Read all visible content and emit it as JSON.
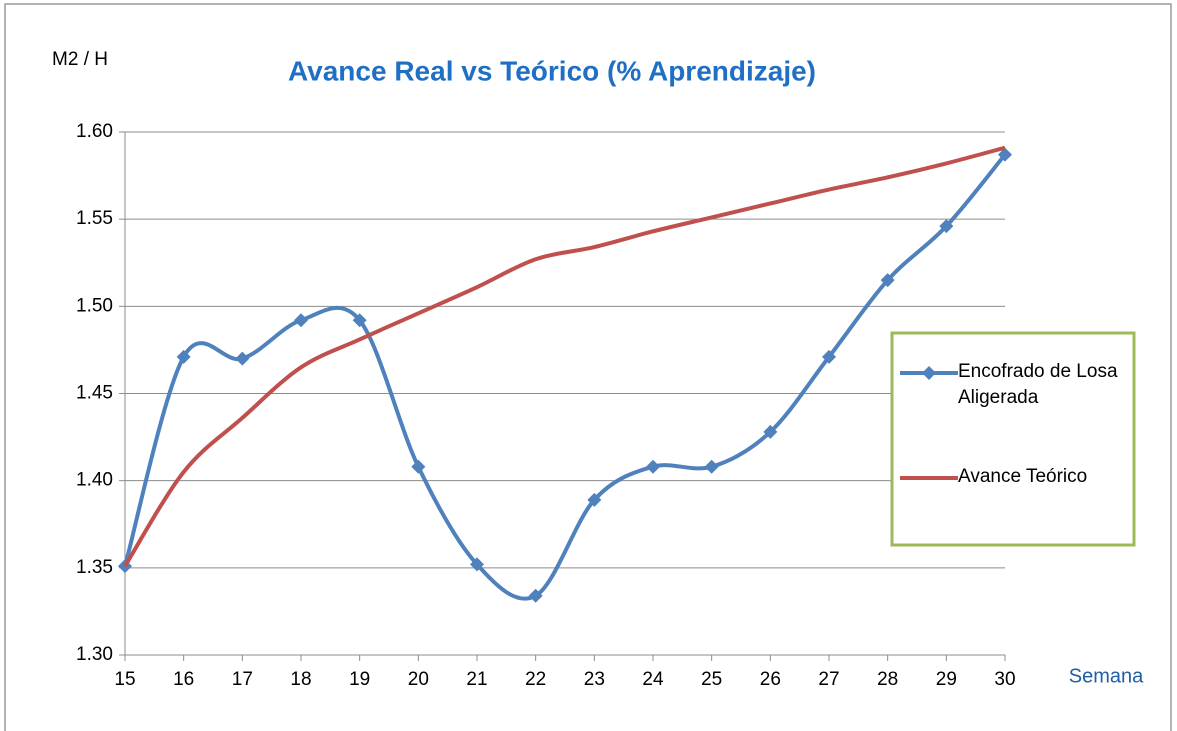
{
  "chart_data": {
    "type": "line",
    "title": "Avance Real vs Teórico (% Aprendizaje)",
    "y_label": "M2 / H",
    "x_label": "Semana",
    "x": [
      15,
      16,
      17,
      18,
      19,
      20,
      21,
      22,
      23,
      24,
      25,
      26,
      27,
      28,
      29,
      30
    ],
    "series": [
      {
        "name": "Encofrado de Losa Aligerada",
        "color": "#4f81bd",
        "marker": "diamond",
        "values": [
          1.351,
          1.471,
          1.47,
          1.492,
          1.492,
          1.408,
          1.352,
          1.334,
          1.389,
          1.408,
          1.408,
          1.428,
          1.471,
          1.515,
          1.546,
          1.587
        ]
      },
      {
        "name": "Avance Teórico",
        "color": "#c0504d",
        "marker": "none",
        "values": [
          1.351,
          1.405,
          1.436,
          1.465,
          1.481,
          1.496,
          1.511,
          1.527,
          1.534,
          1.543,
          1.551,
          1.559,
          1.567,
          1.574,
          1.582,
          1.591
        ]
      }
    ],
    "xlim": [
      15,
      30
    ],
    "xticks": [
      15,
      16,
      17,
      18,
      19,
      20,
      21,
      22,
      23,
      24,
      25,
      26,
      27,
      28,
      29,
      30
    ],
    "ylim": [
      1.3,
      1.6
    ],
    "yticks": [
      {
        "value": 1.3,
        "label": "1.30"
      },
      {
        "value": 1.35,
        "label": "1.35"
      },
      {
        "value": 1.4,
        "label": "1.40"
      },
      {
        "value": 1.45,
        "label": "1.45"
      },
      {
        "value": 1.5,
        "label": "1.50"
      },
      {
        "value": 1.55,
        "label": "1.55"
      },
      {
        "value": 1.6,
        "label": "1.60"
      }
    ],
    "grid": true,
    "legend": "right"
  }
}
